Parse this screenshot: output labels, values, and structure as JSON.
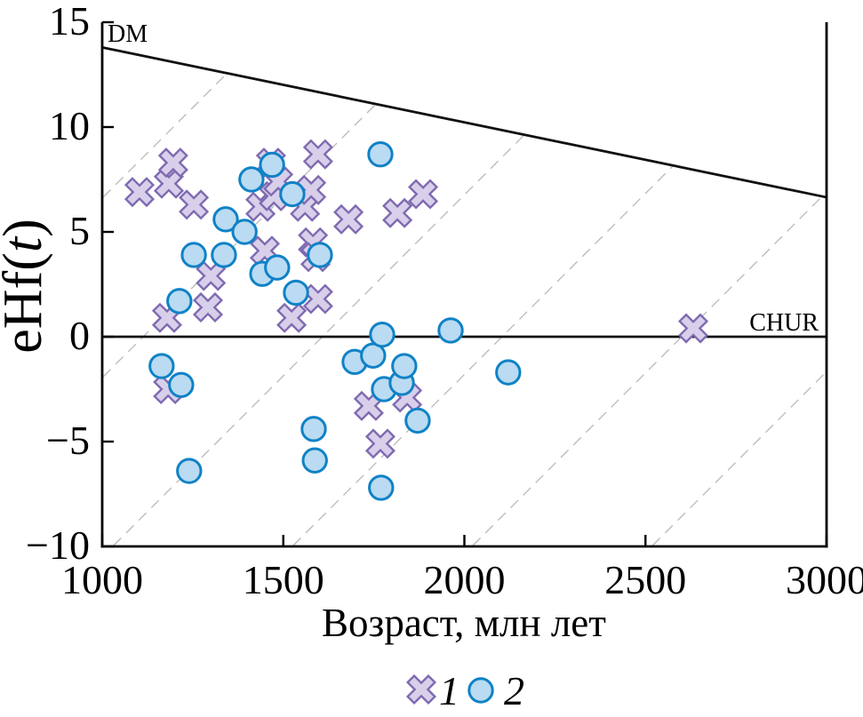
{
  "chart_data": {
    "type": "scatter",
    "title": "",
    "xlabel": "Возраст, млн лет",
    "ylabel_pre": "eHf(",
    "ylabel_var": "t",
    "ylabel_post": ")",
    "xlim": [
      1000,
      3000
    ],
    "ylim": [
      -10,
      15
    ],
    "grid": false,
    "x_ticks": [
      1000,
      1500,
      2000,
      2500,
      3000
    ],
    "x_tick_labels": [
      "1000",
      "1500",
      "2000",
      "2500",
      "3000"
    ],
    "y_ticks": [
      15,
      10,
      5,
      0,
      -5,
      -10
    ],
    "y_tick_labels": [
      "15",
      "10",
      "5",
      "0",
      "−5",
      "−10"
    ],
    "dm_line": {
      "label": "DM",
      "points": [
        [
          1000,
          13.8
        ],
        [
          3000,
          6.65
        ]
      ]
    },
    "chur_line": {
      "label": "CHUR",
      "eHf": 0
    },
    "evolution_guides": {
      "style": "dashed",
      "slope_eHf_per_Ma": 0.01727,
      "anchor_ages_at_eHf_neg10": [
        38,
        534,
        1029,
        1525,
        2021,
        2517
      ]
    },
    "legend": {
      "position": "bottom-center",
      "items": [
        {
          "label": "1",
          "marker": "cross"
        },
        {
          "label": "2",
          "marker": "circle"
        }
      ]
    },
    "series": [
      {
        "name": "1",
        "marker": "cross",
        "fill": "#d8d0ea",
        "stroke": "#7f6ab1",
        "points": [
          [
            1103,
            6.9
          ],
          [
            1179,
            0.9
          ],
          [
            1182,
            -2.5
          ],
          [
            1184,
            7.3
          ],
          [
            1196,
            8.3
          ],
          [
            1253,
            6.3
          ],
          [
            1292,
            1.4
          ],
          [
            1300,
            2.9
          ],
          [
            1437,
            6.2
          ],
          [
            1449,
            4.1
          ],
          [
            1466,
            8.3
          ],
          [
            1474,
            6.7
          ],
          [
            1486,
            7.4
          ],
          [
            1523,
            0.9
          ],
          [
            1560,
            6.2
          ],
          [
            1577,
            7.0
          ],
          [
            1582,
            4.5
          ],
          [
            1589,
            3.8
          ],
          [
            1596,
            8.7
          ],
          [
            1596,
            1.8
          ],
          [
            1680,
            5.6
          ],
          [
            1736,
            -3.3
          ],
          [
            1768,
            -5.1
          ],
          [
            1815,
            5.9
          ],
          [
            1842,
            -2.9
          ],
          [
            1886,
            6.8
          ],
          [
            2632,
            0.4
          ]
        ]
      },
      {
        "name": "2",
        "marker": "circle",
        "fill": "#badbf2",
        "stroke": "#0f82c6",
        "points": [
          [
            1164,
            -1.4
          ],
          [
            1213,
            1.7
          ],
          [
            1218,
            -2.3
          ],
          [
            1240,
            -6.4
          ],
          [
            1253,
            3.9
          ],
          [
            1336,
            3.9
          ],
          [
            1341,
            5.6
          ],
          [
            1393,
            5.0
          ],
          [
            1412,
            7.5
          ],
          [
            1442,
            3.0
          ],
          [
            1469,
            8.2
          ],
          [
            1483,
            3.3
          ],
          [
            1525,
            6.8
          ],
          [
            1535,
            2.1
          ],
          [
            1584,
            -4.4
          ],
          [
            1587,
            -5.9
          ],
          [
            1601,
            3.9
          ],
          [
            1697,
            -1.2
          ],
          [
            1748,
            -0.9
          ],
          [
            1768,
            8.7
          ],
          [
            1770,
            -7.2
          ],
          [
            1773,
            0.1
          ],
          [
            1778,
            -2.5
          ],
          [
            1827,
            -2.2
          ],
          [
            1834,
            -1.4
          ],
          [
            1871,
            -4.0
          ],
          [
            1962,
            0.3
          ],
          [
            2121,
            -1.7
          ]
        ]
      }
    ]
  }
}
